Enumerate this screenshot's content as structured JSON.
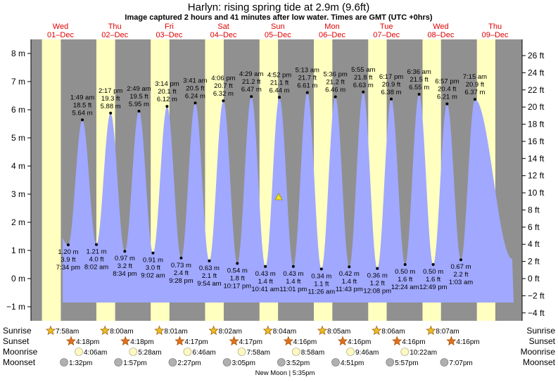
{
  "chart_data": {
    "type": "area",
    "title": "Harlyn: rising  spring tide at 2.9m (9.6ft)",
    "subtitle": "Image captured 2 hours and 41 minutes after low water. Times are GMT (UTC +0hrs)",
    "days": [
      {
        "dow": "Wed",
        "date": "01–Dec"
      },
      {
        "dow": "Thu",
        "date": "02–Dec"
      },
      {
        "dow": "Fri",
        "date": "03–Dec"
      },
      {
        "dow": "Sat",
        "date": "04–Dec"
      },
      {
        "dow": "Sun",
        "date": "05–Dec"
      },
      {
        "dow": "Mon",
        "date": "06–Dec"
      },
      {
        "dow": "Tue",
        "date": "07–Dec"
      },
      {
        "dow": "Wed",
        "date": "08–Dec"
      },
      {
        "dow": "Thu",
        "date": "09–Dec"
      }
    ],
    "left_axis": {
      "unit": "m",
      "range": [
        -1.5,
        8.5
      ],
      "ticks": [
        -1,
        0,
        1,
        2,
        3,
        4,
        5,
        6,
        7,
        8
      ],
      "tick_labels": [
        "−1 m",
        "0 m",
        "1 m",
        "2 m",
        "3 m",
        "4 m",
        "5 m",
        "6 m",
        "7 m",
        "8 m"
      ]
    },
    "right_axis": {
      "unit": "ft",
      "ticks": [
        -4,
        -2,
        0,
        2,
        4,
        6,
        8,
        10,
        12,
        14,
        16,
        18,
        20,
        22,
        24,
        26
      ],
      "tick_labels": [
        "−4 ft",
        "−2 ft",
        "0 ft",
        "2 ft",
        "4 ft",
        "6 ft",
        "8 ft",
        "10 ft",
        "12 ft",
        "14 ft",
        "16 ft",
        "18 ft",
        "20 ft",
        "22 ft",
        "24 ft",
        "26 ft"
      ]
    },
    "tides": [
      {
        "kind": "low",
        "time": "7:34 pm",
        "h_m": 1.2,
        "label_m": "1.20 m",
        "label_ft": "3.9 ft",
        "day": 0
      },
      {
        "kind": "high",
        "time": "1:49 am",
        "h_m": 5.64,
        "label_m": "5.64 m",
        "label_ft": "18.5 ft",
        "day": 1
      },
      {
        "kind": "low",
        "time": "8:02 am",
        "h_m": 1.21,
        "label_m": "1.21 m",
        "label_ft": "4.0 ft",
        "day": 1
      },
      {
        "kind": "high",
        "time": "2:17 pm",
        "h_m": 5.88,
        "label_m": "5.88 m",
        "label_ft": "19.3 ft",
        "day": 1
      },
      {
        "kind": "low",
        "time": "8:34 pm",
        "h_m": 0.97,
        "label_m": "0.97 m",
        "label_ft": "3.2 ft",
        "day": 1
      },
      {
        "kind": "high",
        "time": "2:49 am",
        "h_m": 5.95,
        "label_m": "5.95 m",
        "label_ft": "19.5 ft",
        "day": 2
      },
      {
        "kind": "low",
        "time": "9:02 am",
        "h_m": 0.91,
        "label_m": "0.91 m",
        "label_ft": "3.0 ft",
        "day": 2
      },
      {
        "kind": "high",
        "time": "3:14 pm",
        "h_m": 6.12,
        "label_m": "6.12 m",
        "label_ft": "20.1 ft",
        "day": 2
      },
      {
        "kind": "low",
        "time": "9:28 pm",
        "h_m": 0.73,
        "label_m": "0.73 m",
        "label_ft": "2.4 ft",
        "day": 2
      },
      {
        "kind": "high",
        "time": "3:41 am",
        "h_m": 6.24,
        "label_m": "6.24 m",
        "label_ft": "20.5 ft",
        "day": 3
      },
      {
        "kind": "low",
        "time": "9:54 am",
        "h_m": 0.63,
        "label_m": "0.63 m",
        "label_ft": "2.1 ft",
        "day": 3
      },
      {
        "kind": "high",
        "time": "4:06 pm",
        "h_m": 6.32,
        "label_m": "6.32 m",
        "label_ft": "20.7 ft",
        "day": 3
      },
      {
        "kind": "low",
        "time": "10:17 pm",
        "h_m": 0.54,
        "label_m": "0.54 m",
        "label_ft": "1.8 ft",
        "day": 3
      },
      {
        "kind": "high",
        "time": "4:29 am",
        "h_m": 6.47,
        "label_m": "6.47 m",
        "label_ft": "21.2 ft",
        "day": 4
      },
      {
        "kind": "low",
        "time": "10:41 am",
        "h_m": 0.43,
        "label_m": "0.43 m",
        "label_ft": "1.4 ft",
        "day": 4
      },
      {
        "kind": "high",
        "time": "4:52 pm",
        "h_m": 6.44,
        "label_m": "6.44 m",
        "label_ft": "21.1 ft",
        "day": 4
      },
      {
        "kind": "low",
        "time": "11:01 pm",
        "h_m": 0.43,
        "label_m": "0.43 m",
        "label_ft": "1.4 ft",
        "day": 4
      },
      {
        "kind": "high",
        "time": "5:13 am",
        "h_m": 6.61,
        "label_m": "6.61 m",
        "label_ft": "21.7 ft",
        "day": 5
      },
      {
        "kind": "low",
        "time": "11:26 am",
        "h_m": 0.34,
        "label_m": "0.34 m",
        "label_ft": "1.1 ft",
        "day": 5
      },
      {
        "kind": "high",
        "time": "5:36 pm",
        "h_m": 6.46,
        "label_m": "6.46 m",
        "label_ft": "21.2 ft",
        "day": 5
      },
      {
        "kind": "low",
        "time": "11:43 pm",
        "h_m": 0.42,
        "label_m": "0.42 m",
        "label_ft": "1.4 ft",
        "day": 5
      },
      {
        "kind": "high",
        "time": "5:55 am",
        "h_m": 6.63,
        "label_m": "6.63 m",
        "label_ft": "21.8 ft",
        "day": 6
      },
      {
        "kind": "low",
        "time": "12:08 pm",
        "h_m": 0.36,
        "label_m": "0.36 m",
        "label_ft": "1.2 ft",
        "day": 6
      },
      {
        "kind": "high",
        "time": "6:17 pm",
        "h_m": 6.38,
        "label_m": "6.38 m",
        "label_ft": "20.9 ft",
        "day": 6
      },
      {
        "kind": "low",
        "time": "12:24 am",
        "h_m": 0.5,
        "label_m": "0.50 m",
        "label_ft": "1.6 ft",
        "day": 7
      },
      {
        "kind": "high",
        "time": "6:36 am",
        "h_m": 6.55,
        "label_m": "6.55 m",
        "label_ft": "21.5 ft",
        "day": 7
      },
      {
        "kind": "low",
        "time": "12:49 pm",
        "h_m": 0.5,
        "label_m": "0.50 m",
        "label_ft": "1.6 ft",
        "day": 7
      },
      {
        "kind": "high",
        "time": "6:57 pm",
        "h_m": 6.21,
        "label_m": "6.21 m",
        "label_ft": "20.4 ft",
        "day": 7
      },
      {
        "kind": "low",
        "time": "1:03 am",
        "h_m": 0.67,
        "label_m": "0.67 m",
        "label_ft": "2.2 ft",
        "day": 8
      },
      {
        "kind": "high",
        "time": "7:15 am",
        "h_m": 6.37,
        "label_m": "6.37 m",
        "label_ft": "20.9 ft",
        "day": 8
      }
    ],
    "current": {
      "h_m": 2.9
    },
    "rows": {
      "sunrise_label": "Sunrise",
      "sunset_label": "Sunset",
      "moonrise_label": "Moonrise",
      "moonset_label": "Moonset",
      "sunrise": [
        "7:58am",
        "8:00am",
        "8:01am",
        "8:02am",
        "8:04am",
        "8:05am",
        "8:06am",
        "8:07am"
      ],
      "sunset": [
        "4:18pm",
        "4:18pm",
        "4:17pm",
        "4:17pm",
        "4:16pm",
        "4:16pm",
        "4:16pm",
        "4:16pm"
      ],
      "moonrise": [
        "4:06am",
        "5:28am",
        "6:46am",
        "7:58am",
        "8:58am",
        "9:46am",
        "10:22am"
      ],
      "moonset": [
        "1:32pm",
        "1:57pm",
        "2:27pm",
        "3:05pm",
        "3:52pm",
        "4:51pm",
        "5:57pm",
        "7:07pm"
      ]
    },
    "moon_phase_note": "New Moon | 5:35pm",
    "colors": {
      "night": "#909090",
      "day": "#ffffc0",
      "water": "#a0a8ff",
      "day_label": "#e00000",
      "sun": "#e8c020",
      "sunset": "#e07020",
      "moonrise": "#fff8c0",
      "moonset": "#b0b0b0",
      "marker": "#f0e020"
    }
  }
}
